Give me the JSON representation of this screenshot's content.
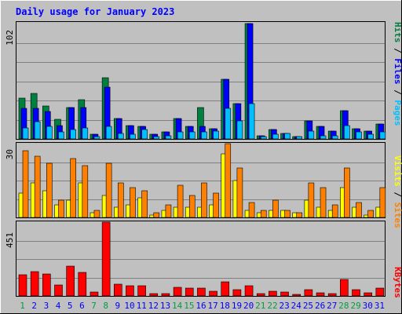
{
  "chart_data": [
    {
      "type": "bar",
      "title": "Daily usage for January 2023",
      "ylabel_max": "102",
      "legend": [
        "Pages",
        "Files",
        "Hits"
      ],
      "categories": [
        "1",
        "2",
        "3",
        "4",
        "5",
        "6",
        "7",
        "8",
        "9",
        "10",
        "11",
        "12",
        "13",
        "14",
        "15",
        "16",
        "17",
        "18",
        "19",
        "20",
        "21",
        "22",
        "23",
        "24",
        "25",
        "26",
        "27",
        "28",
        "29",
        "30",
        "31"
      ],
      "weekend_days": [
        "1",
        "7",
        "8",
        "14",
        "15",
        "21",
        "22",
        "28",
        "29"
      ],
      "ylim": [
        0,
        102
      ],
      "series": [
        {
          "name": "Hits",
          "values": [
            36,
            40,
            29,
            17,
            28,
            35,
            4,
            54,
            18,
            12,
            11,
            4,
            6,
            18,
            11,
            28,
            9,
            53,
            31,
            102,
            3,
            8,
            5,
            2,
            16,
            11,
            7,
            25,
            9,
            7,
            13
          ]
        },
        {
          "name": "Files",
          "values": [
            27,
            27,
            24,
            12,
            28,
            28,
            4,
            46,
            18,
            12,
            11,
            4,
            6,
            18,
            11,
            11,
            9,
            53,
            31,
            102,
            3,
            8,
            5,
            2,
            16,
            11,
            7,
            25,
            9,
            7,
            13
          ]
        },
        {
          "name": "Pages",
          "values": [
            10,
            15,
            11,
            6,
            8,
            10,
            2,
            11,
            5,
            4,
            8,
            2,
            3,
            6,
            6,
            6,
            7,
            27,
            16,
            31,
            2,
            4,
            5,
            2,
            7,
            3,
            3,
            12,
            6,
            4,
            6
          ]
        }
      ]
    },
    {
      "type": "bar",
      "ylabel_max": "30",
      "legend": [
        "Sites",
        "Visits"
      ],
      "ylim": [
        0,
        30
      ],
      "series": [
        {
          "name": "Visits",
          "values": [
            27,
            25,
            22,
            7,
            24,
            21,
            3,
            22,
            14,
            12,
            11,
            2,
            5,
            13,
            9,
            14,
            10,
            30,
            20,
            6,
            3,
            7,
            3,
            2,
            14,
            12,
            5,
            20,
            6,
            3,
            12
          ]
        },
        {
          "name": "Sites",
          "values": [
            10,
            14,
            11,
            5,
            7,
            14,
            2,
            9,
            4,
            5,
            8,
            1,
            3,
            4,
            4,
            4,
            5,
            26,
            15,
            3,
            2,
            3,
            3,
            2,
            7,
            4,
            3,
            12,
            4,
            1,
            4
          ]
        }
      ]
    },
    {
      "type": "bar",
      "ylabel_max": "451",
      "legend": [
        "KBytes"
      ],
      "ylim": [
        0,
        451
      ],
      "series": [
        {
          "name": "KBytes",
          "values": [
            130,
            150,
            135,
            65,
            180,
            145,
            22,
            451,
            70,
            60,
            62,
            12,
            15,
            52,
            48,
            50,
            28,
            85,
            40,
            60,
            16,
            28,
            22,
            10,
            40,
            20,
            16,
            100,
            40,
            20,
            48
          ]
        }
      ]
    }
  ],
  "colors": {
    "background": "#c0c0c0",
    "title": "#0000ff",
    "grid": "#808080",
    "hits": "#008040",
    "files": "#0000ff",
    "pages": "#00c0ff",
    "visits": "#ff8000",
    "sites": "#ffff00",
    "kbytes": "#ff0000",
    "weekday_label": "#0000ff",
    "weekend_label": "#00a040"
  }
}
